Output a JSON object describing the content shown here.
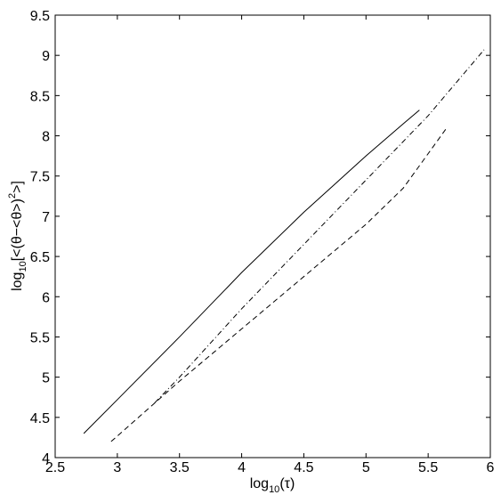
{
  "chart_data": {
    "type": "line",
    "xlabel": [
      "log",
      "10",
      "(τ)"
    ],
    "ylabel": [
      "log",
      "10",
      "[<(θ−<θ>)",
      "2",
      ">]"
    ],
    "xlim": [
      2.5,
      6
    ],
    "ylim": [
      4,
      9.5
    ],
    "xticks": [
      2.5,
      3,
      3.5,
      4,
      4.5,
      5,
      5.5,
      6
    ],
    "yticks": [
      4,
      4.5,
      5,
      5.5,
      6,
      6.5,
      7,
      7.5,
      8,
      8.5,
      9,
      9.5
    ],
    "grid": false,
    "series": [
      {
        "style": "solid",
        "color": "#000000",
        "x": [
          2.73,
          3.0,
          3.5,
          4.0,
          4.5,
          5.0,
          5.3,
          5.43
        ],
        "values": [
          4.3,
          4.72,
          5.5,
          6.3,
          7.05,
          7.75,
          8.15,
          8.32
        ]
      },
      {
        "style": "dashdot",
        "color": "#000000",
        "x": [
          3.3,
          3.5,
          4.0,
          4.5,
          5.0,
          5.5,
          5.95
        ],
        "values": [
          4.68,
          5.0,
          5.85,
          6.65,
          7.45,
          8.25,
          9.07
        ]
      },
      {
        "style": "dashed",
        "color": "#000000",
        "x": [
          2.95,
          3.5,
          4.0,
          4.5,
          5.0,
          5.3,
          5.65
        ],
        "values": [
          4.2,
          4.95,
          5.6,
          6.25,
          6.9,
          7.35,
          8.1
        ]
      }
    ]
  }
}
